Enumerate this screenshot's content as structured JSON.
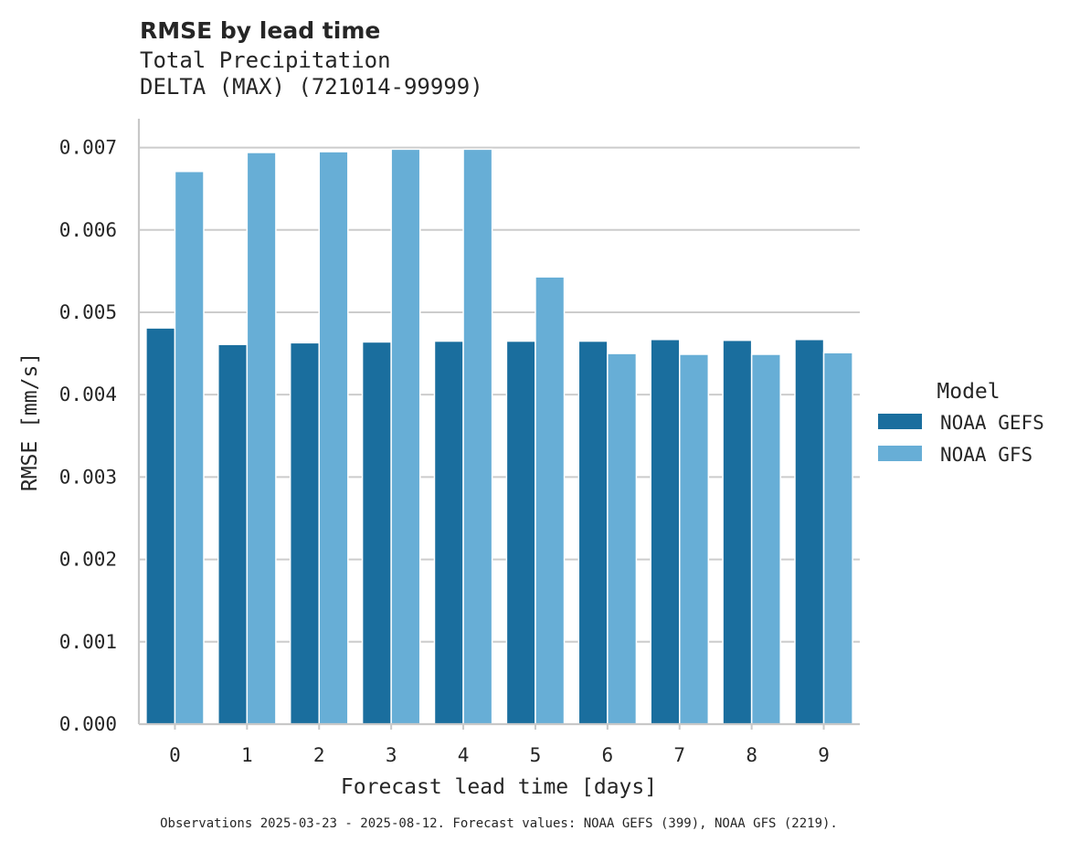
{
  "chart_data": {
    "type": "bar",
    "title": "RMSE by lead time",
    "subtitle_lines": [
      "Total Precipitation",
      "DELTA (MAX) (721014-99999)"
    ],
    "xlabel": "Forecast lead time [days]",
    "ylabel": "RMSE [mm/s]",
    "categories": [
      "0",
      "1",
      "2",
      "3",
      "4",
      "5",
      "6",
      "7",
      "8",
      "9"
    ],
    "ylim": [
      0,
      0.00735
    ],
    "yticks": [
      0.0,
      0.001,
      0.002,
      0.003,
      0.004,
      0.005,
      0.006,
      0.007
    ],
    "ytick_labels": [
      "0.000",
      "0.001",
      "0.002",
      "0.003",
      "0.004",
      "0.005",
      "0.006",
      "0.007"
    ],
    "grid": "horizontal",
    "legend": {
      "title": "Model",
      "placement": "right-outside"
    },
    "series": [
      {
        "name": "NOAA GEFS",
        "color": "#1a6e9e",
        "values": [
          0.00481,
          0.00461,
          0.00463,
          0.00464,
          0.00465,
          0.00465,
          0.00465,
          0.00467,
          0.00466,
          0.00467
        ]
      },
      {
        "name": "NOAA GFS",
        "color": "#67aed6",
        "values": [
          0.00671,
          0.00694,
          0.00695,
          0.00698,
          0.00698,
          0.00543,
          0.0045,
          0.00449,
          0.00449,
          0.00451
        ]
      }
    ],
    "footnote": "Observations 2025-03-23 - 2025-08-12. Forecast values: NOAA GEFS (399), NOAA GFS (2219)."
  }
}
